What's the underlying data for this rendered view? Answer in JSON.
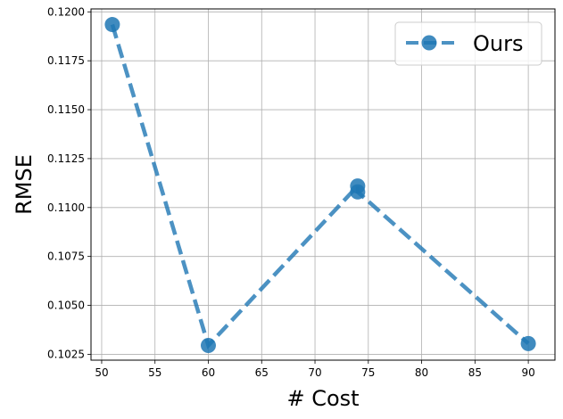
{
  "chart_data": {
    "type": "line",
    "xlabel": "# Cost",
    "ylabel": "RMSE",
    "xlim": [
      49,
      92.5
    ],
    "ylim": [
      0.1022,
      0.12015
    ],
    "xticks": [
      50,
      55,
      60,
      65,
      70,
      75,
      80,
      85,
      90
    ],
    "xtick_labels": [
      "50",
      "55",
      "60",
      "65",
      "70",
      "75",
      "80",
      "85",
      "90"
    ],
    "yticks": [
      0.1025,
      0.105,
      0.1075,
      0.11,
      0.1125,
      0.115,
      0.1175,
      0.12
    ],
    "ytick_labels": [
      "0.1025",
      "0.1050",
      "0.1075",
      "0.1100",
      "0.1125",
      "0.1150",
      "0.1175",
      "0.1200"
    ],
    "grid": true,
    "legend_position": "top-right",
    "series": [
      {
        "name": "Ours",
        "color": "#1f77b4",
        "line_style": "dashed",
        "marker": "circle",
        "x": [
          51,
          60,
          74,
          74,
          90
        ],
        "y": [
          0.11935,
          0.10295,
          0.1111,
          0.1108,
          0.10305
        ]
      }
    ]
  }
}
